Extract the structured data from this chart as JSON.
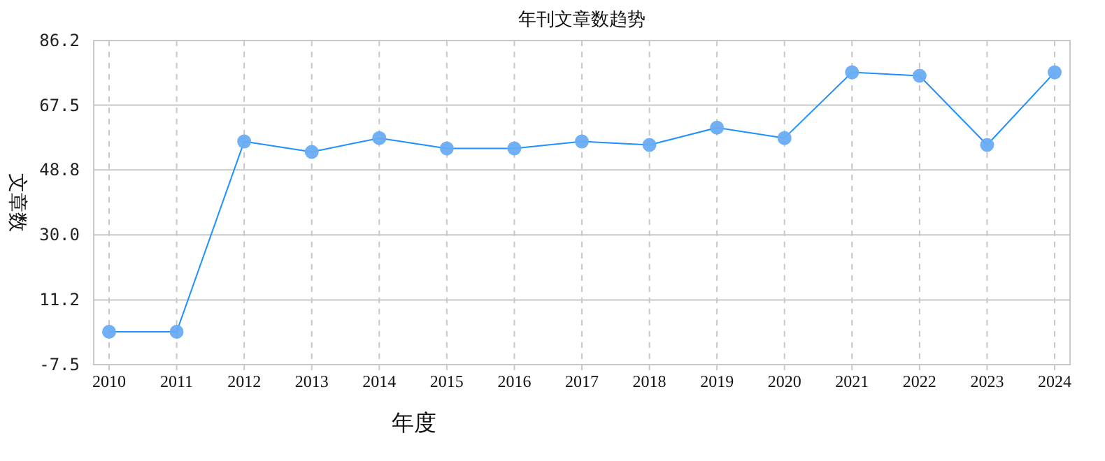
{
  "chart_data": {
    "type": "line",
    "title": "年刊文章数趋势",
    "xlabel": "年度",
    "ylabel": "文章数",
    "categories": [
      "2010",
      "2011",
      "2012",
      "2013",
      "2014",
      "2015",
      "2016",
      "2017",
      "2018",
      "2019",
      "2020",
      "2021",
      "2022",
      "2023",
      "2024"
    ],
    "series": [
      {
        "color": "#1e90ff",
        "values": [
          2,
          2,
          57,
          54,
          58,
          55,
          55,
          57,
          56,
          61,
          58,
          77,
          76,
          56,
          77
        ]
      }
    ],
    "ylim": [
      -7.5,
      86.2
    ],
    "yticks": [
      -7.5,
      11.2,
      {
        "value": 30,
        "label": "30.0"
      },
      48.8,
      67.5,
      86.2
    ],
    "grid": true,
    "marker": "circle",
    "line_style": "solid"
  }
}
